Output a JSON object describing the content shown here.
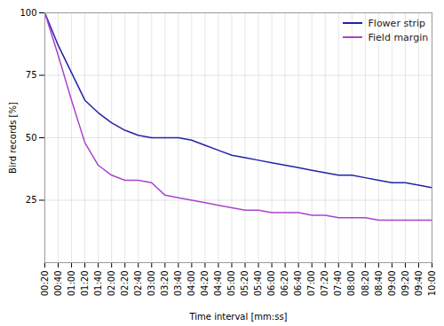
{
  "chart_data": {
    "type": "line",
    "xlabel": "Time interval [mm:ss]",
    "ylabel": "Bird records [%]",
    "x": [
      20,
      40,
      60,
      80,
      100,
      120,
      140,
      160,
      180,
      200,
      220,
      240,
      260,
      280,
      300,
      320,
      340,
      360,
      380,
      400,
      420,
      440,
      460,
      480,
      500,
      520,
      540,
      560,
      580,
      600
    ],
    "series": [
      {
        "name": "Flower strip",
        "color": "#2222AA",
        "values": [
          100,
          87,
          76,
          65,
          60,
          56,
          53,
          51,
          50,
          50,
          50,
          49,
          47,
          45,
          43,
          42,
          41,
          40,
          39,
          38,
          37,
          36,
          35,
          35,
          34,
          33,
          32,
          32,
          31,
          30
        ]
      },
      {
        "name": "Field margin",
        "color": "#AA44CC",
        "values": [
          100,
          83,
          65,
          48,
          39,
          35,
          33,
          33,
          32,
          27,
          26,
          25,
          24,
          23,
          22,
          21,
          21,
          20,
          20,
          20,
          19,
          19,
          18,
          18,
          18,
          17,
          17,
          17,
          17,
          17
        ]
      }
    ],
    "xlim": [
      20,
      600
    ],
    "xticks": [
      {
        "value": 20,
        "label": "00:20"
      },
      {
        "value": 40,
        "label": "00:40"
      },
      {
        "value": 60,
        "label": "01:00"
      },
      {
        "value": 80,
        "label": "01:20"
      },
      {
        "value": 100,
        "label": "01:40"
      },
      {
        "value": 120,
        "label": "02:00"
      },
      {
        "value": 140,
        "label": "02:20"
      },
      {
        "value": 160,
        "label": "02:40"
      },
      {
        "value": 180,
        "label": "03:00"
      },
      {
        "value": 200,
        "label": "03:20"
      },
      {
        "value": 220,
        "label": "03:40"
      },
      {
        "value": 240,
        "label": "04:00"
      },
      {
        "value": 260,
        "label": "04:20"
      },
      {
        "value": 280,
        "label": "04:40"
      },
      {
        "value": 300,
        "label": "05:00"
      },
      {
        "value": 320,
        "label": "05:20"
      },
      {
        "value": 340,
        "label": "05:40"
      },
      {
        "value": 360,
        "label": "06:00"
      },
      {
        "value": 380,
        "label": "06:20"
      },
      {
        "value": 400,
        "label": "06:40"
      },
      {
        "value": 420,
        "label": "07:00"
      },
      {
        "value": 440,
        "label": "07:20"
      },
      {
        "value": 460,
        "label": "07:40"
      },
      {
        "value": 480,
        "label": "08:00"
      },
      {
        "value": 500,
        "label": "08:20"
      },
      {
        "value": 520,
        "label": "08:40"
      },
      {
        "value": 540,
        "label": "09:00"
      },
      {
        "value": 560,
        "label": "09:20"
      },
      {
        "value": 580,
        "label": "09:40"
      },
      {
        "value": 600,
        "label": "10:00"
      }
    ],
    "ylim": [
      0,
      100
    ],
    "yticks": [
      25,
      50,
      75,
      100
    ],
    "grid": true,
    "legend": "upper right"
  }
}
